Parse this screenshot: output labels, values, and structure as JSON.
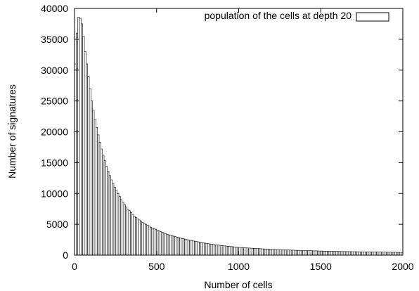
{
  "chart_data": {
    "type": "bar",
    "style": "histogram, unfilled outlined bars",
    "xlabel": "Number of cells",
    "ylabel": "Number of signatures",
    "xlim": [
      0,
      2000
    ],
    "ylim": [
      0,
      40000
    ],
    "xticks": [
      0,
      500,
      1000,
      1500,
      2000
    ],
    "yticks": [
      0,
      5000,
      10000,
      15000,
      20000,
      25000,
      30000,
      35000,
      40000
    ],
    "grid": false,
    "legend": {
      "position": "top-right"
    },
    "series": [
      {
        "name": "population of the cells at depth 20",
        "bin_width": 10,
        "x": [
          10,
          20,
          30,
          40,
          50,
          60,
          70,
          80,
          90,
          100,
          110,
          120,
          130,
          140,
          150,
          160,
          170,
          180,
          190,
          200,
          210,
          220,
          230,
          240,
          250,
          260,
          270,
          280,
          290,
          300,
          310,
          320,
          330,
          340,
          350,
          360,
          370,
          380,
          390,
          400,
          420,
          440,
          460,
          480,
          500,
          520,
          540,
          560,
          580,
          600,
          620,
          640,
          660,
          680,
          700,
          720,
          740,
          760,
          780,
          800,
          820,
          840,
          860,
          880,
          900,
          920,
          940,
          960,
          980,
          1000,
          1050,
          1100,
          1150,
          1200,
          1250,
          1300,
          1350,
          1400,
          1450,
          1500,
          1550,
          1600,
          1650,
          1700,
          1750,
          1800,
          1850,
          1900,
          1950,
          1990
        ],
        "values": [
          31000,
          36000,
          38600,
          38400,
          37500,
          35500,
          33000,
          31000,
          29000,
          27000,
          25000,
          23500,
          22000,
          20700,
          19500,
          18300,
          17200,
          16200,
          15300,
          14400,
          13600,
          12900,
          12200,
          11600,
          11000,
          10500,
          10000,
          9500,
          9000,
          8600,
          8200,
          7800,
          7500,
          7200,
          6900,
          6600,
          6300,
          6100,
          5900,
          5700,
          5300,
          5000,
          4700,
          4400,
          4200,
          3950,
          3700,
          3500,
          3300,
          3150,
          3000,
          2850,
          2700,
          2600,
          2450,
          2350,
          2250,
          2150,
          2050,
          1950,
          1850,
          1780,
          1700,
          1630,
          1560,
          1500,
          1440,
          1390,
          1340,
          1280,
          1180,
          1100,
          1020,
          950,
          890,
          840,
          790,
          750,
          710,
          670,
          640,
          610,
          580,
          560,
          540,
          520,
          500,
          480,
          460,
          440
        ]
      }
    ]
  }
}
